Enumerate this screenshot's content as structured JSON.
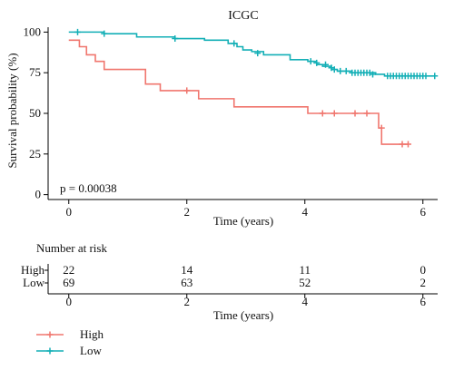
{
  "chart_data": {
    "type": "line",
    "subtype": "kaplan-meier",
    "title": "ICGC",
    "xlabel": "Time (years)",
    "ylabel": "Survival probability (%)",
    "xlim": [
      -0.35,
      6.25
    ],
    "ylim": [
      -3,
      103
    ],
    "x_ticks": [
      0,
      2,
      4,
      6
    ],
    "y_ticks": [
      0,
      25,
      50,
      75,
      100
    ],
    "grid": false,
    "annotation": "p = 0.00038",
    "series": [
      {
        "name": "High",
        "color": "#F0766E",
        "steps": [
          [
            0,
            95
          ],
          [
            0.18,
            91
          ],
          [
            0.3,
            86
          ],
          [
            0.45,
            82
          ],
          [
            0.6,
            77
          ],
          [
            1.3,
            68
          ],
          [
            1.55,
            64
          ],
          [
            2.2,
            59
          ],
          [
            2.8,
            54
          ],
          [
            4.05,
            50
          ],
          [
            5.25,
            41
          ],
          [
            5.3,
            31
          ],
          [
            5.75,
            31
          ]
        ],
        "censored": [
          [
            2.0,
            64
          ],
          [
            4.3,
            50
          ],
          [
            4.5,
            50
          ],
          [
            4.85,
            50
          ],
          [
            5.05,
            50
          ],
          [
            5.3,
            41
          ],
          [
            5.65,
            31
          ],
          [
            5.75,
            31
          ]
        ]
      },
      {
        "name": "Low",
        "color": "#13AFB6",
        "steps": [
          [
            0,
            100
          ],
          [
            0.6,
            99
          ],
          [
            1.15,
            97
          ],
          [
            1.8,
            96
          ],
          [
            2.3,
            95
          ],
          [
            2.7,
            93
          ],
          [
            2.85,
            91
          ],
          [
            2.95,
            89
          ],
          [
            3.1,
            88
          ],
          [
            3.3,
            86
          ],
          [
            3.75,
            83
          ],
          [
            4.05,
            82
          ],
          [
            4.2,
            80
          ],
          [
            4.3,
            79
          ],
          [
            4.45,
            77
          ],
          [
            4.55,
            76
          ],
          [
            4.8,
            75
          ],
          [
            5.2,
            74
          ],
          [
            5.35,
            73
          ],
          [
            6.2,
            73
          ]
        ],
        "censored": [
          [
            0.15,
            100
          ],
          [
            0.6,
            99
          ],
          [
            1.8,
            96
          ],
          [
            2.8,
            93
          ],
          [
            3.2,
            87
          ],
          [
            4.1,
            82
          ],
          [
            4.2,
            81
          ],
          [
            4.35,
            80
          ],
          [
            4.45,
            78
          ],
          [
            4.5,
            77
          ],
          [
            4.6,
            76
          ],
          [
            4.7,
            76
          ],
          [
            4.8,
            75
          ],
          [
            4.85,
            75
          ],
          [
            4.9,
            75
          ],
          [
            4.95,
            75
          ],
          [
            5.0,
            75
          ],
          [
            5.05,
            75
          ],
          [
            5.1,
            75
          ],
          [
            5.15,
            74
          ],
          [
            5.4,
            73
          ],
          [
            5.45,
            73
          ],
          [
            5.5,
            73
          ],
          [
            5.55,
            73
          ],
          [
            5.6,
            73
          ],
          [
            5.65,
            73
          ],
          [
            5.7,
            73
          ],
          [
            5.75,
            73
          ],
          [
            5.8,
            73
          ],
          [
            5.85,
            73
          ],
          [
            5.9,
            73
          ],
          [
            5.95,
            73
          ],
          [
            6.0,
            73
          ],
          [
            6.05,
            73
          ],
          [
            6.2,
            73
          ]
        ]
      }
    ]
  },
  "risk_table": {
    "title": "Number at risk",
    "xlabel": "Time (years)",
    "times": [
      0,
      2,
      4,
      6
    ],
    "rows": [
      {
        "label": "High",
        "counts": [
          "22",
          "14",
          "11",
          "0"
        ]
      },
      {
        "label": "Low",
        "counts": [
          "69",
          "63",
          "52",
          "2"
        ]
      }
    ]
  },
  "legend": {
    "placement": "bottom-left",
    "items": [
      {
        "label": "High",
        "color": "#F0766E"
      },
      {
        "label": "Low",
        "color": "#13AFB6"
      }
    ]
  }
}
